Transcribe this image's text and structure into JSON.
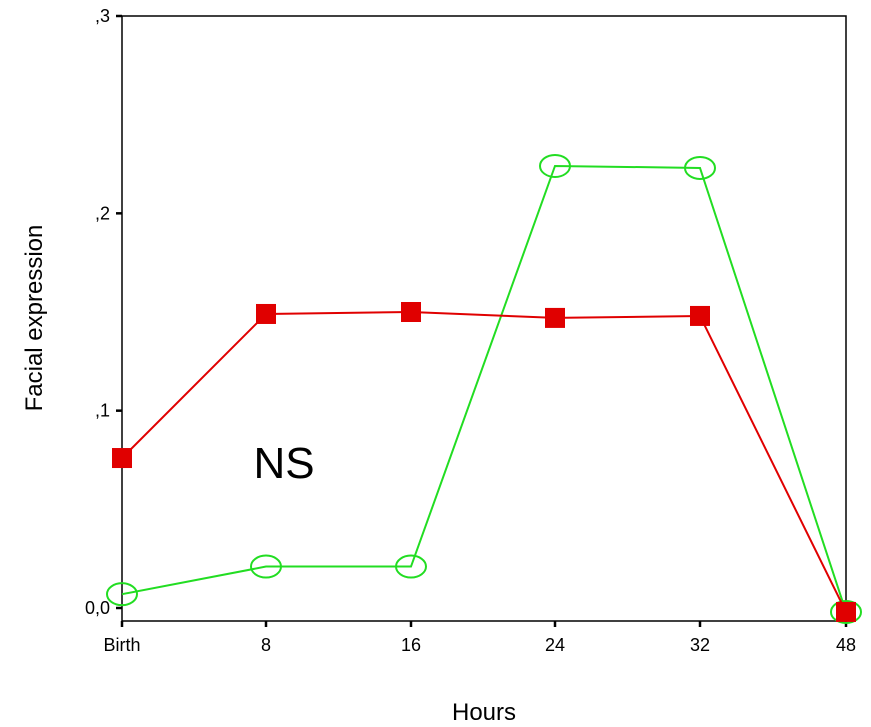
{
  "chart_data": {
    "type": "line",
    "categories": [
      "Birth",
      "8",
      "16",
      "24",
      "32",
      "48"
    ],
    "xlabel": "Hours",
    "ylabel": "Facial expression",
    "ylim": [
      0,
      0.3
    ],
    "yticks": [
      0,
      0.1,
      0.2,
      0.3
    ],
    "ytick_labels": [
      "0,0",
      ",1",
      ",2",
      ",3"
    ],
    "grid": false,
    "annotation": "NS",
    "series": [
      {
        "color": "#e00000",
        "marker": "square",
        "values": [
          0.076,
          0.149,
          0.15,
          0.147,
          0.148,
          -0.002
        ]
      },
      {
        "color": "#22dd22",
        "marker": "circle-open",
        "values": [
          0.007,
          0.021,
          0.021,
          0.224,
          0.223,
          -0.002
        ]
      }
    ]
  }
}
